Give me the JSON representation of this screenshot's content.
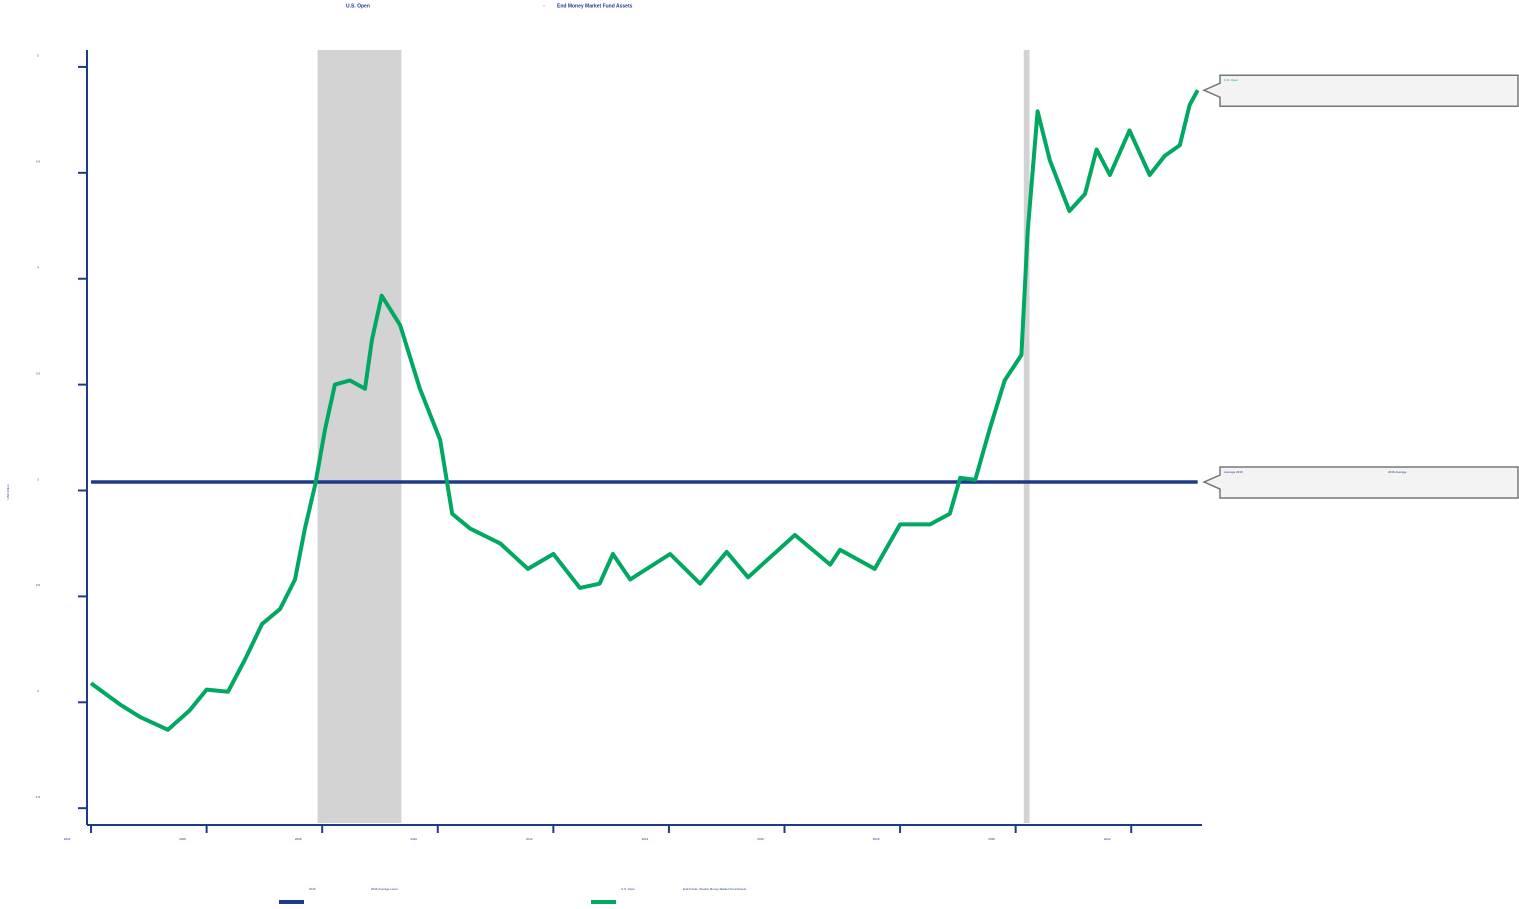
{
  "chart_data": {
    "type": "line",
    "top_legend": [
      "U.S. Open",
      "End Money Market Fund Assets"
    ],
    "y_label": "USD trillion",
    "x": [
      2004.0,
      2004.5,
      2004.85,
      2005.33,
      2005.7,
      2006.0,
      2006.37,
      2006.66,
      2006.96,
      2007.27,
      2007.53,
      2007.7,
      2007.88,
      2008.05,
      2008.22,
      2008.48,
      2008.74,
      2008.86,
      2009.03,
      2009.35,
      2009.69,
      2010.04,
      2010.25,
      2010.56,
      2011.08,
      2011.56,
      2012.0,
      2012.46,
      2012.8,
      2013.03,
      2013.33,
      2014.02,
      2014.54,
      2015.0,
      2015.37,
      2016.18,
      2016.79,
      2016.96,
      2017.56,
      2018.0,
      2018.52,
      2018.86,
      2019.04,
      2019.3,
      2019.55,
      2019.81,
      2020.1,
      2020.21,
      2020.38,
      2020.59,
      2020.93,
      2021.2,
      2021.4,
      2021.63,
      2021.97,
      2022.32,
      2022.58,
      2022.84,
      2023.01,
      2023.15
    ],
    "series": [
      {
        "name": "U.S. Open",
        "color": "#00a862",
        "values": [
          2.09,
          1.99,
          1.93,
          1.87,
          1.96,
          2.06,
          2.05,
          2.2,
          2.37,
          2.44,
          2.58,
          2.82,
          3.03,
          3.29,
          3.5,
          3.52,
          3.48,
          3.71,
          3.92,
          3.78,
          3.48,
          3.24,
          2.89,
          2.82,
          2.75,
          2.63,
          2.7,
          2.54,
          2.56,
          2.7,
          2.58,
          2.7,
          2.56,
          2.71,
          2.59,
          2.79,
          2.65,
          2.72,
          2.63,
          2.84,
          2.84,
          2.89,
          3.06,
          3.05,
          3.29,
          3.52,
          3.64,
          4.23,
          4.79,
          4.56,
          4.32,
          4.4,
          4.61,
          4.49,
          4.7,
          4.49,
          4.58,
          4.63,
          4.82,
          4.89
        ]
      }
    ],
    "reference_line": {
      "name": "2016",
      "value": 3.04,
      "color": "#1f3a8a"
    },
    "recessions": [
      [
        2007.92,
        2009.37
      ],
      [
        2020.14,
        2020.24
      ]
    ],
    "bottom_legend": [
      {
        "name": "2016",
        "label": "2016 Average Level",
        "color": "#1f3a8a"
      },
      {
        "name": "U.S. Open",
        "label": "End Funds, Weekly Money Market Fund Assets",
        "color": "#00a862"
      }
    ],
    "callouts": [
      {
        "text": "U.S. Open",
        "value": 4.89,
        "color": "#00a862"
      },
      {
        "text": "Average 2016",
        "value": 3.04,
        "color": "#1f3a8a",
        "note": "2016 Average"
      }
    ],
    "xlim": [
      2003.93,
      2023.19
    ],
    "xticks": [
      2004,
      2006,
      2008,
      2010,
      2012,
      2014,
      2016,
      2018,
      2020,
      2022
    ],
    "ylim": [
      1.43,
      5.08
    ],
    "yticks": [
      1.5,
      2.0,
      2.5,
      3.0,
      3.5,
      4.0,
      4.5,
      5.0
    ]
  }
}
